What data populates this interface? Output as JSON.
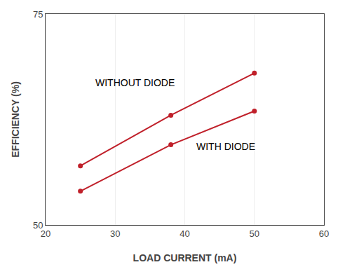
{
  "chart_data": {
    "type": "line",
    "x": [
      25,
      38,
      50
    ],
    "series": [
      {
        "color": "#C0202A",
        "marker": "circle",
        "line_style": "solid",
        "values": [
          57.0,
          63.0,
          68.0
        ]
      },
      {
        "color": "#C0202A",
        "marker": "circle",
        "line_style": "solid",
        "values": [
          54.0,
          59.5,
          63.5
        ]
      }
    ],
    "annotations": [
      {
        "text": "WITHOUT DIODE",
        "x": 27,
        "y": 66.0
      },
      {
        "text": "WITH DIODE",
        "x": 41.5,
        "y": 58.5
      }
    ],
    "x_label": "LOAD CURRENT (mA)",
    "y_label": "EFFICIENCY (%)",
    "xlim": [
      20,
      60
    ],
    "ylim": [
      50,
      75
    ],
    "xticks": [
      20,
      30,
      40,
      50,
      60
    ],
    "yticks": [
      50,
      75
    ],
    "grid": true
  }
}
